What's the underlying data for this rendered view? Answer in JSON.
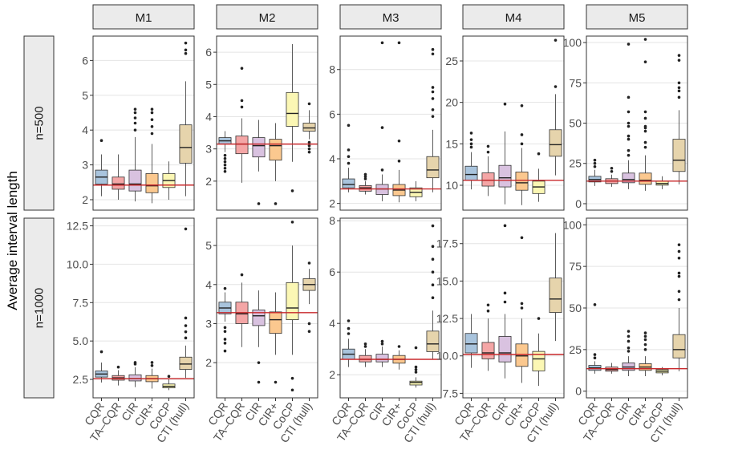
{
  "chart_data": {
    "type": "boxplot",
    "ylabel": "Average interval length",
    "categories": [
      "CQR",
      "TA–CQR",
      "CIR",
      "CIR+",
      "CoCP",
      "CTI (hull)"
    ],
    "methods": [
      "M1",
      "M2",
      "M3",
      "M4",
      "M5"
    ],
    "row_labels": [
      "n=500",
      "n=1000"
    ],
    "colors": {
      "boxes": [
        "#a9c4dd",
        "#f4a6a6",
        "#d9c2e0",
        "#fbc88f",
        "#fbf7b4",
        "#e6d4ac"
      ],
      "reference_line": "#c8282b",
      "strip_fill": "#ebebeb",
      "grid": "#e4e4e4"
    },
    "panels": [
      {
        "row": 0,
        "col": 0,
        "ylim": [
          1.7,
          6.7
        ],
        "yticks": [
          2,
          3,
          4,
          5,
          6
        ],
        "ytick_labels": [
          "2",
          "3",
          "4",
          "5",
          "6"
        ],
        "reference": 2.42,
        "boxes": [
          {
            "q1": 2.45,
            "med": 2.65,
            "q3": 2.85,
            "wlo": 2.1,
            "whi": 3.3,
            "out": [
              3.7
            ]
          },
          {
            "q1": 2.3,
            "med": 2.45,
            "q3": 2.65,
            "wlo": 2.0,
            "whi": 3.3,
            "out": []
          },
          {
            "q1": 2.25,
            "med": 2.45,
            "q3": 2.85,
            "wlo": 1.95,
            "whi": 3.8,
            "out": [
              4.0,
              4.2,
              4.35,
              4.5,
              4.6
            ]
          },
          {
            "q1": 2.2,
            "med": 2.4,
            "q3": 2.75,
            "wlo": 1.9,
            "whi": 3.6,
            "out": [
              3.9,
              4.1,
              4.3,
              4.5,
              4.6
            ]
          },
          {
            "q1": 2.35,
            "med": 2.55,
            "q3": 2.75,
            "wlo": 2.0,
            "whi": 3.1,
            "out": []
          },
          {
            "q1": 3.05,
            "med": 3.5,
            "q3": 4.15,
            "wlo": 2.1,
            "whi": 5.4,
            "out": [
              6.2,
              6.3,
              6.5
            ]
          }
        ]
      },
      {
        "row": 0,
        "col": 1,
        "ylim": [
          1.1,
          6.5
        ],
        "yticks": [
          2,
          3,
          4,
          5,
          6
        ],
        "ytick_labels": [
          "2",
          "3",
          "4",
          "5",
          "6"
        ],
        "reference": 3.15,
        "boxes": [
          {
            "q1": 3.15,
            "med": 3.25,
            "q3": 3.35,
            "wlo": 2.9,
            "whi": 3.55,
            "out": [
              2.3,
              2.4,
              2.5,
              2.6,
              2.7,
              2.8
            ]
          },
          {
            "q1": 2.85,
            "med": 3.15,
            "q3": 3.4,
            "wlo": 1.95,
            "whi": 3.95,
            "out": [
              4.3,
              4.5,
              5.5
            ]
          },
          {
            "q1": 2.75,
            "med": 3.1,
            "q3": 3.35,
            "wlo": 2.3,
            "whi": 3.9,
            "out": [
              1.3
            ]
          },
          {
            "q1": 2.65,
            "med": 3.1,
            "q3": 3.3,
            "wlo": 2.0,
            "whi": 3.8,
            "out": [
              1.3
            ]
          },
          {
            "q1": 3.7,
            "med": 4.1,
            "q3": 4.75,
            "wlo": 2.6,
            "whi": 6.25,
            "out": [
              1.7
            ]
          },
          {
            "q1": 3.55,
            "med": 3.65,
            "q3": 3.8,
            "wlo": 3.3,
            "whi": 4.2,
            "out": [
              2.9,
              3.0,
              3.1,
              3.2,
              4.4
            ]
          }
        ]
      },
      {
        "row": 0,
        "col": 2,
        "ylim": [
          1.7,
          9.5
        ],
        "yticks": [
          2,
          4,
          6,
          8
        ],
        "ytick_labels": [
          "2",
          "4",
          "6",
          "8"
        ],
        "reference": 2.65,
        "boxes": [
          {
            "q1": 2.7,
            "med": 2.85,
            "q3": 3.1,
            "wlo": 2.5,
            "whi": 3.6,
            "out": [
              3.8,
              4.1,
              4.4,
              5.5
            ]
          },
          {
            "q1": 2.55,
            "med": 2.7,
            "q3": 2.8,
            "wlo": 2.4,
            "whi": 3.0,
            "out": [
              3.1,
              3.2,
              3.3
            ]
          },
          {
            "q1": 2.4,
            "med": 2.65,
            "q3": 2.85,
            "wlo": 2.1,
            "whi": 3.3,
            "out": [
              3.5,
              5.4,
              9.2
            ]
          },
          {
            "q1": 2.35,
            "med": 2.6,
            "q3": 2.85,
            "wlo": 2.05,
            "whi": 3.5,
            "out": [
              3.9,
              4.8,
              9.2
            ]
          },
          {
            "q1": 2.3,
            "med": 2.5,
            "q3": 2.7,
            "wlo": 2.1,
            "whi": 3.0,
            "out": []
          },
          {
            "q1": 3.15,
            "med": 3.5,
            "q3": 4.1,
            "wlo": 2.5,
            "whi": 5.3,
            "out": [
              5.9,
              6.2,
              6.7,
              7.0,
              7.2,
              8.7,
              8.9
            ]
          }
        ]
      },
      {
        "row": 0,
        "col": 3,
        "ylim": [
          7.0,
          28.0
        ],
        "yticks": [
          10,
          15,
          20,
          25
        ],
        "ytick_labels": [
          "10",
          "15",
          "20",
          "25"
        ],
        "reference": 10.6,
        "boxes": [
          {
            "q1": 10.6,
            "med": 11.3,
            "q3": 12.3,
            "wlo": 9.5,
            "whi": 14.0,
            "out": [
              14.6,
              15.0,
              15.5,
              16.3
            ]
          },
          {
            "q1": 9.9,
            "med": 10.6,
            "q3": 11.5,
            "wlo": 8.7,
            "whi": 13.5,
            "out": [
              14.0,
              14.7
            ]
          },
          {
            "q1": 9.8,
            "med": 10.9,
            "q3": 12.4,
            "wlo": 7.7,
            "whi": 16.5,
            "out": [
              19.8
            ]
          },
          {
            "q1": 9.4,
            "med": 10.3,
            "q3": 11.6,
            "wlo": 7.6,
            "whi": 14.5,
            "out": [
              15.0,
              16.1,
              19.6
            ]
          },
          {
            "q1": 9.0,
            "med": 9.8,
            "q3": 10.5,
            "wlo": 8.0,
            "whi": 12.0,
            "out": [
              13.8
            ]
          },
          {
            "q1": 13.5,
            "med": 14.9,
            "q3": 16.7,
            "wlo": 11.2,
            "whi": 21.0,
            "out": [
              21.9,
              27.5
            ]
          }
        ]
      },
      {
        "row": 0,
        "col": 4,
        "ylim": [
          -4,
          104
        ],
        "yticks": [
          0,
          25,
          50,
          75,
          100
        ],
        "ytick_labels": [
          "0",
          "25",
          "50",
          "75",
          "100"
        ],
        "reference": 14,
        "boxes": [
          {
            "q1": 13.5,
            "med": 15,
            "q3": 17,
            "wlo": 11,
            "whi": 21,
            "out": [
              23,
              25,
              27
            ]
          },
          {
            "q1": 12.5,
            "med": 14,
            "q3": 15.5,
            "wlo": 10.5,
            "whi": 18,
            "out": [
              20,
              22
            ]
          },
          {
            "q1": 13,
            "med": 15,
            "q3": 19,
            "wlo": 9,
            "whi": 27,
            "out": [
              30,
              33,
              40,
              42,
              48,
              50,
              57,
              66,
              99
            ]
          },
          {
            "q1": 12,
            "med": 14.5,
            "q3": 19,
            "wlo": 8,
            "whi": 30,
            "out": [
              35,
              38,
              45,
              47,
              48,
              53,
              57,
              88,
              102
            ]
          },
          {
            "q1": 11.5,
            "med": 12.5,
            "q3": 14,
            "wlo": 9,
            "whi": 17,
            "out": []
          },
          {
            "q1": 20,
            "med": 27,
            "q3": 40,
            "wlo": 12,
            "whi": 58,
            "out": [
              66,
              70,
              72,
              75,
              89,
              92
            ]
          }
        ]
      },
      {
        "row": 1,
        "col": 0,
        "ylim": [
          1.3,
          13.0
        ],
        "yticks": [
          2.5,
          5.0,
          7.5,
          10.0,
          12.5
        ],
        "ytick_labels": [
          "2.5",
          "5.0",
          "7.5",
          "10.0",
          "12.5"
        ],
        "reference": 2.55,
        "boxes": [
          {
            "q1": 2.65,
            "med": 2.85,
            "q3": 3.05,
            "wlo": 2.3,
            "whi": 3.6,
            "out": [
              4.3
            ]
          },
          {
            "q1": 2.45,
            "med": 2.6,
            "q3": 2.75,
            "wlo": 2.1,
            "whi": 3.1,
            "out": [
              3.3
            ]
          },
          {
            "q1": 2.4,
            "med": 2.55,
            "q3": 2.8,
            "wlo": 2.0,
            "whi": 3.3,
            "out": [
              3.5,
              3.6
            ]
          },
          {
            "q1": 2.35,
            "med": 2.55,
            "q3": 2.75,
            "wlo": 1.9,
            "whi": 3.2,
            "out": [
              3.4,
              3.6
            ]
          },
          {
            "q1": 1.95,
            "med": 2.05,
            "q3": 2.2,
            "wlo": 1.8,
            "whi": 2.5,
            "out": [
              2.7
            ]
          },
          {
            "q1": 3.15,
            "med": 3.5,
            "q3": 3.95,
            "wlo": 2.6,
            "whi": 4.7,
            "out": [
              5.2,
              5.6,
              6.0,
              6.5,
              12.3
            ]
          }
        ]
      },
      {
        "row": 1,
        "col": 1,
        "ylim": [
          1.1,
          5.7
        ],
        "yticks": [
          2,
          3,
          4,
          5
        ],
        "ytick_labels": [
          "2",
          "3",
          "4",
          "5"
        ],
        "reference": 3.28,
        "boxes": [
          {
            "q1": 3.25,
            "med": 3.4,
            "q3": 3.55,
            "wlo": 3.05,
            "whi": 3.8,
            "out": [
              2.3,
              2.5,
              2.6,
              2.8,
              2.9,
              3.9
            ]
          },
          {
            "q1": 3.0,
            "med": 3.25,
            "q3": 3.55,
            "wlo": 2.4,
            "whi": 4.05,
            "out": [
              4.25
            ]
          },
          {
            "q1": 2.95,
            "med": 3.2,
            "q3": 3.35,
            "wlo": 2.4,
            "whi": 3.85,
            "out": [
              1.5,
              2.0
            ]
          },
          {
            "q1": 2.75,
            "med": 3.1,
            "q3": 3.3,
            "wlo": 2.2,
            "whi": 3.8,
            "out": [
              1.5
            ]
          },
          {
            "q1": 3.1,
            "med": 3.4,
            "q3": 4.05,
            "wlo": 2.2,
            "whi": 5.0,
            "out": [
              1.3,
              1.6,
              5.6
            ]
          },
          {
            "q1": 3.85,
            "med": 4.0,
            "q3": 4.15,
            "wlo": 3.5,
            "whi": 4.4,
            "out": [
              2.8,
              3.0,
              4.55
            ]
          }
        ]
      },
      {
        "row": 1,
        "col": 2,
        "ylim": [
          1.1,
          8.1
        ],
        "yticks": [
          2,
          4,
          6,
          8
        ],
        "ytick_labels": [
          "2",
          "4",
          "6",
          "8"
        ],
        "reference": 2.6,
        "boxes": [
          {
            "q1": 2.6,
            "med": 2.8,
            "q3": 3.0,
            "wlo": 2.3,
            "whi": 3.4,
            "out": [
              3.6,
              3.8,
              4.1
            ]
          },
          {
            "q1": 2.5,
            "med": 2.6,
            "q3": 2.75,
            "wlo": 2.3,
            "whi": 3.0,
            "out": [
              3.1,
              3.2
            ]
          },
          {
            "q1": 2.5,
            "med": 2.6,
            "q3": 2.8,
            "wlo": 2.3,
            "whi": 3.1,
            "out": [
              3.2,
              3.3
            ]
          },
          {
            "q1": 2.45,
            "med": 2.6,
            "q3": 2.75,
            "wlo": 2.2,
            "whi": 2.95,
            "out": [
              3.1
            ]
          },
          {
            "q1": 1.6,
            "med": 1.7,
            "q3": 1.75,
            "wlo": 1.5,
            "whi": 1.9,
            "out": [
              2.1,
              2.2,
              2.3,
              3.05
            ]
          },
          {
            "q1": 2.9,
            "med": 3.2,
            "q3": 3.7,
            "wlo": 2.6,
            "whi": 4.5,
            "out": [
              5.0,
              5.5,
              6.0,
              6.5,
              7.0,
              7.8
            ]
          }
        ]
      },
      {
        "row": 1,
        "col": 3,
        "ylim": [
          7.2,
          19.2
        ],
        "yticks": [
          7.5,
          10.0,
          12.5,
          15.0,
          17.5
        ],
        "ytick_labels": [
          "7.5",
          "10.0",
          "12.5",
          "15.0",
          "17.5"
        ],
        "reference": 10.1,
        "boxes": [
          {
            "q1": 10.2,
            "med": 10.8,
            "q3": 11.5,
            "wlo": 9.2,
            "whi": 12.8,
            "out": []
          },
          {
            "q1": 9.8,
            "med": 10.2,
            "q3": 10.9,
            "wlo": 9.0,
            "whi": 12.5,
            "out": [
              13.0,
              13.4
            ]
          },
          {
            "q1": 9.6,
            "med": 10.2,
            "q3": 11.3,
            "wlo": 8.5,
            "whi": 12.8,
            "out": [
              13.6,
              14.2,
              18.7
            ]
          },
          {
            "q1": 9.3,
            "med": 10.0,
            "q3": 10.8,
            "wlo": 8.2,
            "whi": 12.5,
            "out": [
              13.2,
              13.5,
              17.9
            ]
          },
          {
            "q1": 9.0,
            "med": 9.8,
            "q3": 10.3,
            "wlo": 8.0,
            "whi": 11.5,
            "out": [
              12.5
            ]
          },
          {
            "q1": 12.9,
            "med": 13.8,
            "q3": 15.2,
            "wlo": 11.0,
            "whi": 18.2,
            "out": []
          }
        ]
      },
      {
        "row": 1,
        "col": 4,
        "ylim": [
          -4,
          104
        ],
        "yticks": [
          0,
          25,
          50,
          75,
          100
        ],
        "ytick_labels": [
          "0",
          "25",
          "50",
          "75",
          "100"
        ],
        "reference": 13.5,
        "boxes": [
          {
            "q1": 12.5,
            "med": 14,
            "q3": 15.5,
            "wlo": 10.5,
            "whi": 18,
            "out": [
              20,
              22,
              52
            ]
          },
          {
            "q1": 12,
            "med": 13,
            "q3": 14.5,
            "wlo": 10.5,
            "whi": 17,
            "out": []
          },
          {
            "q1": 12.5,
            "med": 14.5,
            "q3": 17,
            "wlo": 9,
            "whi": 21,
            "out": [
              24,
              26,
              30,
              33,
              36
            ]
          },
          {
            "q1": 12.5,
            "med": 14.5,
            "q3": 16.5,
            "wlo": 9,
            "whi": 21,
            "out": [
              25,
              28,
              31,
              33,
              35
            ]
          },
          {
            "q1": 11,
            "med": 12,
            "q3": 13,
            "wlo": 9.5,
            "whi": 14.5,
            "out": []
          },
          {
            "q1": 20,
            "med": 25,
            "q3": 34,
            "wlo": 12,
            "whi": 50,
            "out": [
              55,
              60,
              69,
              71,
              80,
              84,
              88
            ]
          }
        ]
      }
    ]
  }
}
